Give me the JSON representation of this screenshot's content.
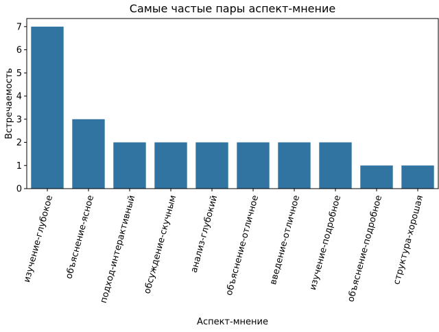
{
  "chart_data": {
    "type": "bar",
    "title": "Самые частые пары аспект-мнение",
    "xlabel": "Аспект-мнение",
    "ylabel": "Встречаемость",
    "categories": [
      "изучение-глубокое",
      "объяснение-ясное",
      "подход-интерактивный",
      "обсуждение-скучным",
      "анализ-глубокий",
      "объяснение-отличное",
      "введение-отличное",
      "изучение-подробное",
      "объяснение-подробное",
      "структура-хорошая"
    ],
    "values": [
      7,
      3,
      2,
      2,
      2,
      2,
      2,
      2,
      1,
      1
    ],
    "ylim": [
      0,
      7.35
    ],
    "yticks": [
      0,
      1,
      2,
      3,
      4,
      5,
      6,
      7
    ],
    "grid": false,
    "legend": "none",
    "bar_color": "#3274a1",
    "x_tick_rotation_deg": 75
  }
}
